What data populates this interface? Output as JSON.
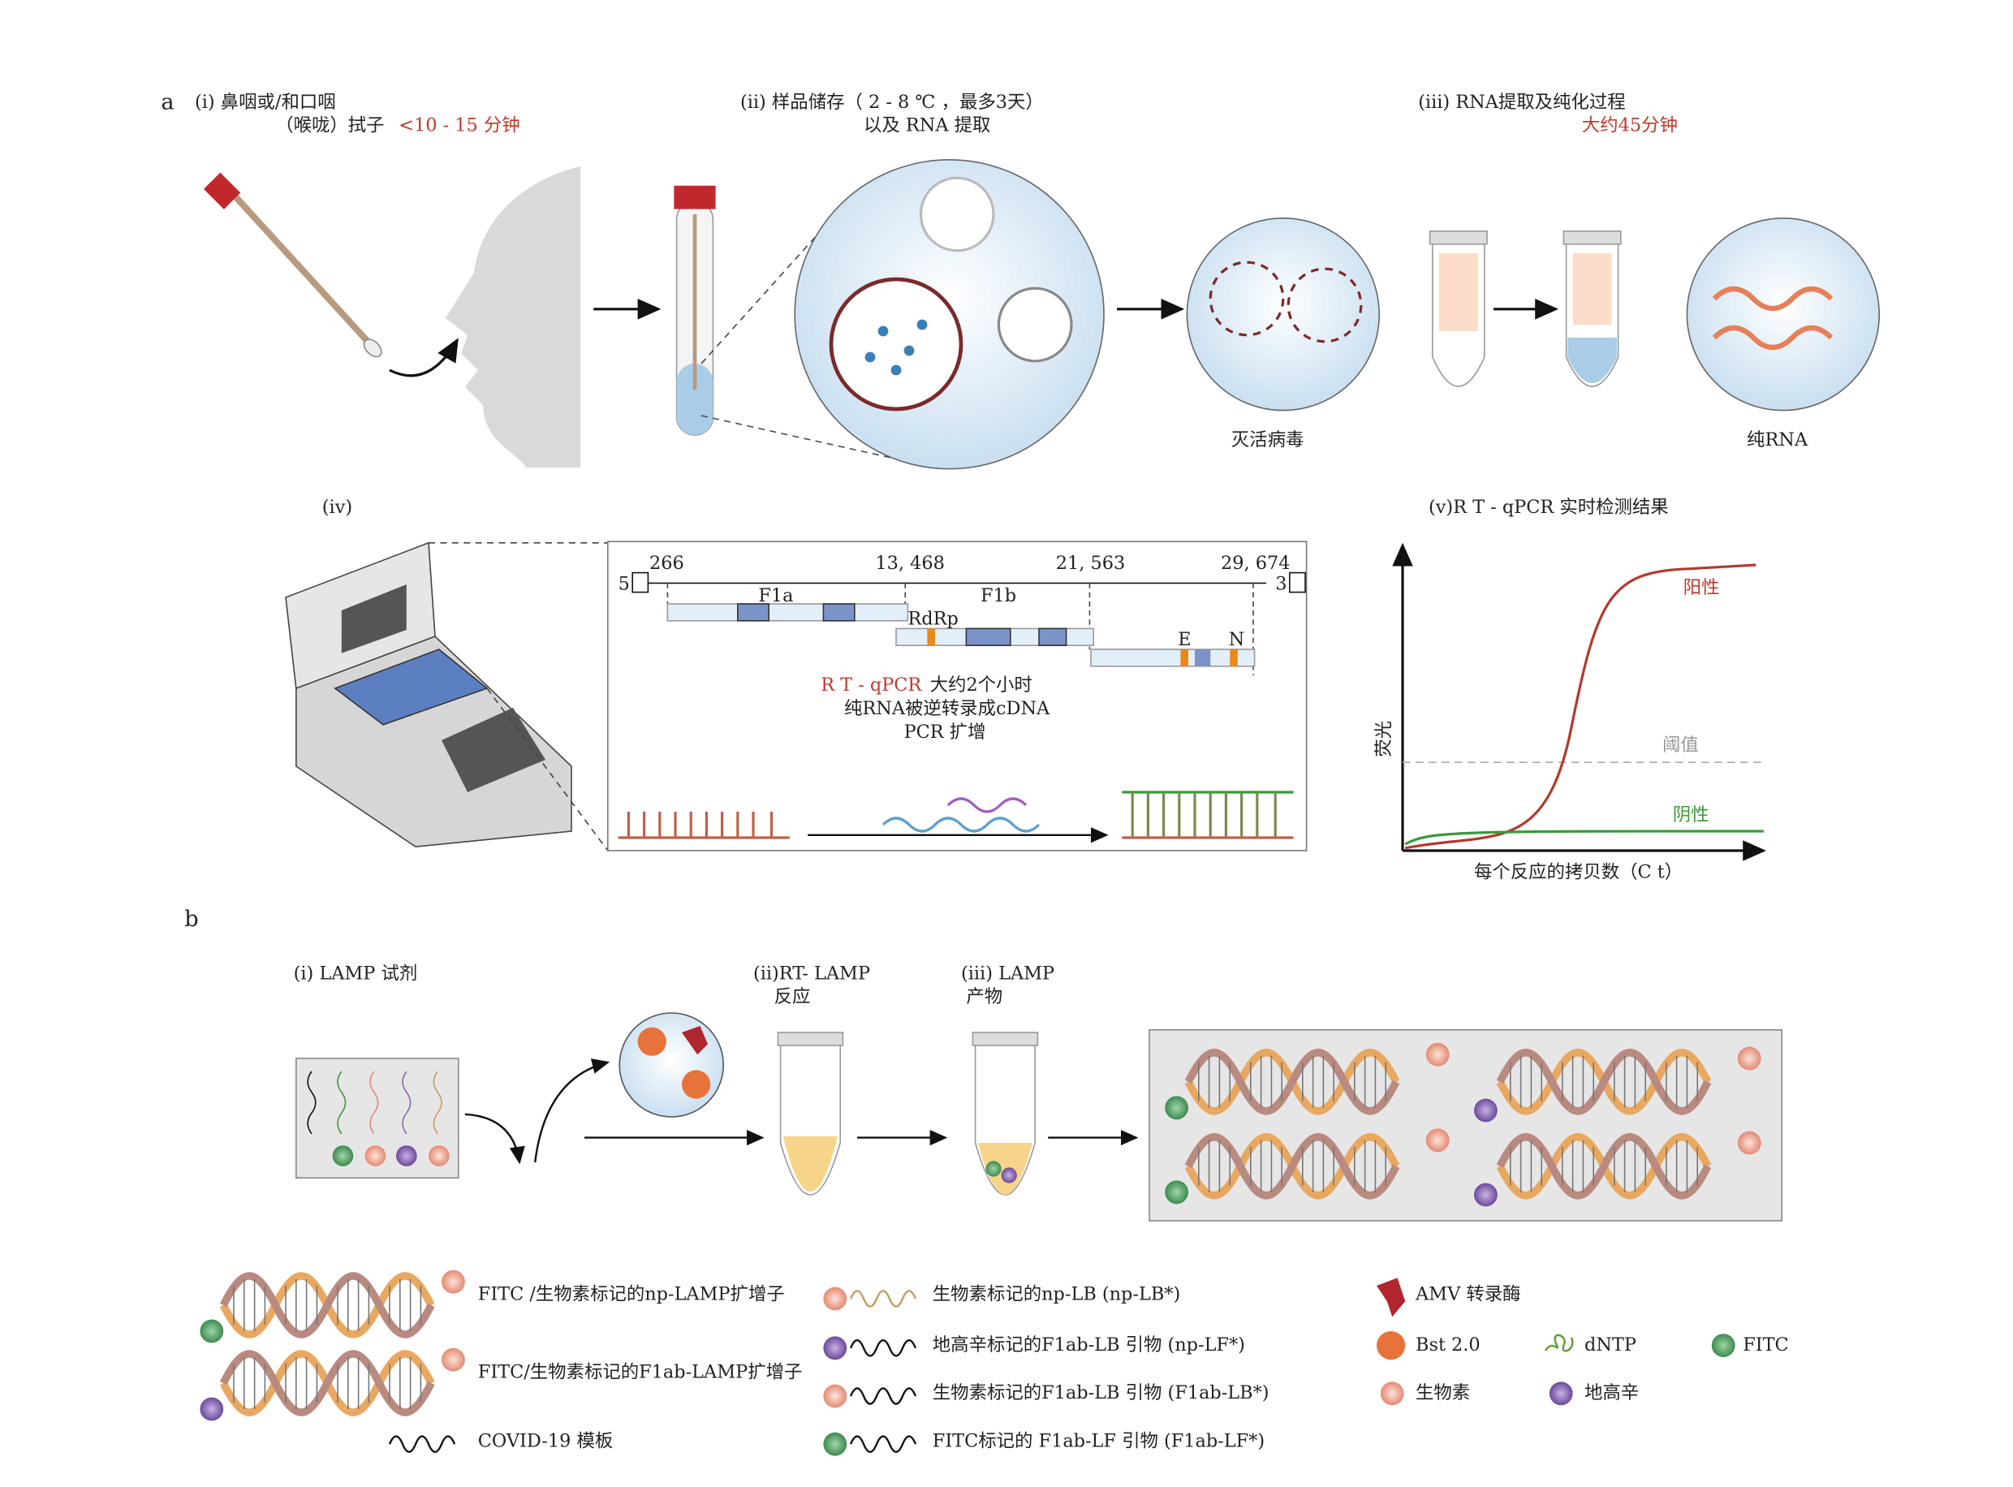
{
  "panel_a": {
    "label": "a",
    "step_i": {
      "line1": "(i) 鼻咽或/和口咽",
      "line2": "（喉咙）拭子",
      "time": "<10 - 15 分钟"
    },
    "step_ii": {
      "line1": "(ii) 样品储存（ 2 - 8 ℃ ，最多3天）",
      "line2": "以及 RNA 提取"
    },
    "step_iii": {
      "line1": "(iii) RNA提取及纯化过程",
      "time": "大约45分钟"
    },
    "inactivated_label": "灭活病毒",
    "pure_rna_label": "纯RNA",
    "step_iv": {
      "label": "(iv)"
    },
    "genome": {
      "positions": [
        "266",
        "13, 468",
        "21, 563",
        "29, 674"
      ],
      "end5": "5",
      "end3": "3",
      "genes": [
        "F1a",
        "F1b",
        "RdRp",
        "E",
        "N"
      ],
      "rtqpcr": "R T - qPCR",
      "duration": "大约2个小时",
      "line2": "纯RNA被逆转录成cDNA",
      "line3": "PCR 扩增"
    },
    "step_v": {
      "label": "(v)R T - qPCR 实时检测结果",
      "positive": "阳性",
      "threshold": "阈值",
      "negative": "阴性",
      "ylabel": "荧光",
      "xlabel": "每个反应的拷贝数（C t）"
    }
  },
  "panel_b": {
    "label": "b",
    "step_i": "(i) LAMP 试剂",
    "step_ii": {
      "line1": "(ii)RT- LAMP",
      "line2": "反应"
    },
    "step_iii": {
      "line1": "(iii) LAMP",
      "line2": "产物"
    }
  },
  "legend": {
    "np_amplicon": "FITC /生物素标记的np-LAMP扩增子",
    "f1ab_amplicon": "FITC/生物素标记的F1ab-LAMP扩增子",
    "template": "COVID-19 模板",
    "np_lb": "生物素标记的np-LB (np-LB*)",
    "np_lf": "地高辛标记的F1ab-LB 引物 (np-LF*)",
    "f1ab_lb": "生物素标记的F1ab-LB 引物 (F1ab-LB*)",
    "f1ab_lf": "FITC标记的 F1ab-LF 引物 (F1ab-LF*)",
    "amv": "AMV 转录酶",
    "bst": "Bst 2.0",
    "dntp": "dNTP",
    "fitc": "FITC",
    "biotin": "生物素",
    "digoxin": "地高辛"
  },
  "colors": {
    "red": "#c0392b",
    "green": "#3a9a3a",
    "fitc": "#5aa46a",
    "biotin": "#f4b0a0",
    "digoxin": "#8a6bb0",
    "blue": "#7b93c9",
    "orange": "#e88a1a"
  }
}
